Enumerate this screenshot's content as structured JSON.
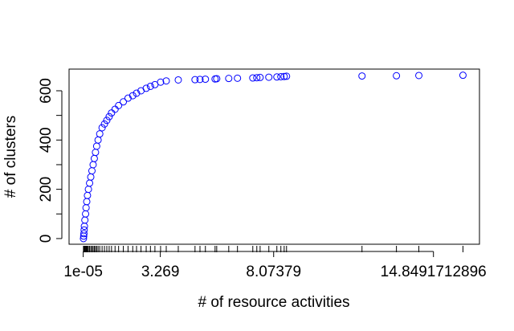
{
  "chart_data": {
    "type": "scatter",
    "x_label": "# of resource activities",
    "y_label": "# of clusters",
    "color": "#0000ff",
    "rug": true,
    "xlim": [
      -0.6,
      16.8
    ],
    "ylim": [
      -23,
      688
    ],
    "xticks": [
      {
        "value": 1e-05,
        "label": "1e-05"
      },
      3.269,
      8.07379,
      14.8491712896
    ],
    "yticks": [
      0,
      200,
      400,
      600
    ],
    "yminor": [
      100,
      300,
      500
    ],
    "x": [
      0.01,
      0.02,
      0.03,
      0.04,
      0.05,
      0.07,
      0.1,
      0.12,
      0.15,
      0.18,
      0.22,
      0.27,
      0.32,
      0.37,
      0.42,
      0.47,
      0.52,
      0.57,
      0.63,
      0.7,
      0.8,
      0.9,
      1.0,
      1.1,
      1.2,
      1.35,
      1.5,
      1.7,
      1.9,
      2.1,
      2.26,
      2.45,
      2.67,
      2.85,
      3.04,
      3.28,
      3.52,
      4.03,
      4.74,
      4.95,
      5.18,
      5.59,
      5.66,
      6.17,
      6.54,
      7.19,
      7.36,
      7.5,
      7.87,
      8.21,
      8.38,
      8.52,
      8.62,
      11.82,
      13.28,
      14.23,
      16.1
    ],
    "y": [
      0,
      10,
      20,
      35,
      50,
      75,
      100,
      125,
      150,
      175,
      200,
      225,
      250,
      275,
      300,
      325,
      350,
      375,
      400,
      425,
      450,
      465,
      480,
      495,
      510,
      525,
      540,
      555,
      570,
      580,
      590,
      600,
      610,
      618,
      625,
      635,
      640,
      644,
      645,
      646,
      647,
      648,
      649,
      650,
      651,
      652,
      653,
      654,
      655,
      656,
      657,
      658,
      659,
      660,
      661,
      662,
      663
    ]
  }
}
